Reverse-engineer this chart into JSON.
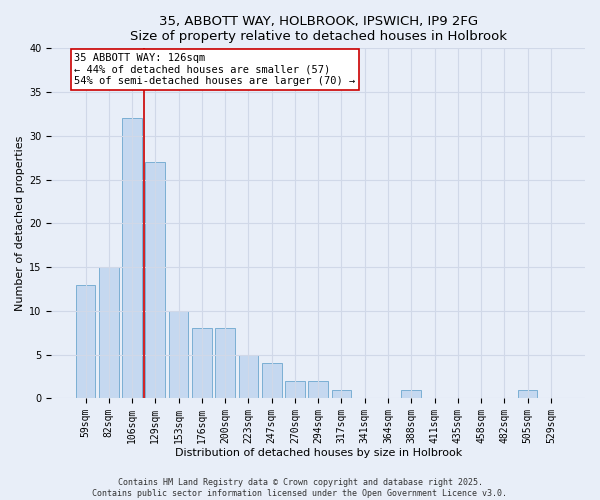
{
  "title": "35, ABBOTT WAY, HOLBROOK, IPSWICH, IP9 2FG",
  "subtitle": "Size of property relative to detached houses in Holbrook",
  "xlabel": "Distribution of detached houses by size in Holbrook",
  "ylabel": "Number of detached properties",
  "bar_labels": [
    "59sqm",
    "82sqm",
    "106sqm",
    "129sqm",
    "153sqm",
    "176sqm",
    "200sqm",
    "223sqm",
    "247sqm",
    "270sqm",
    "294sqm",
    "317sqm",
    "341sqm",
    "364sqm",
    "388sqm",
    "411sqm",
    "435sqm",
    "458sqm",
    "482sqm",
    "505sqm",
    "529sqm"
  ],
  "bar_values": [
    13,
    15,
    32,
    27,
    10,
    8,
    8,
    5,
    4,
    2,
    2,
    1,
    0,
    0,
    1,
    0,
    0,
    0,
    0,
    1,
    0
  ],
  "bar_color": "#c5d8f0",
  "bar_edge_color": "#7bafd4",
  "vline_color": "#cc0000",
  "annotation_text": "35 ABBOTT WAY: 126sqm\n← 44% of detached houses are smaller (57)\n54% of semi-detached houses are larger (70) →",
  "annotation_box_color": "white",
  "annotation_box_edge_color": "#cc0000",
  "ylim": [
    0,
    40
  ],
  "yticks": [
    0,
    5,
    10,
    15,
    20,
    25,
    30,
    35,
    40
  ],
  "grid_color": "#d0d8e8",
  "background_color": "#e8eef8",
  "footer_line1": "Contains HM Land Registry data © Crown copyright and database right 2025.",
  "footer_line2": "Contains public sector information licensed under the Open Government Licence v3.0.",
  "title_fontsize": 9.5,
  "xlabel_fontsize": 8,
  "ylabel_fontsize": 8,
  "tick_fontsize": 7,
  "annotation_fontsize": 7.5,
  "footer_fontsize": 6
}
